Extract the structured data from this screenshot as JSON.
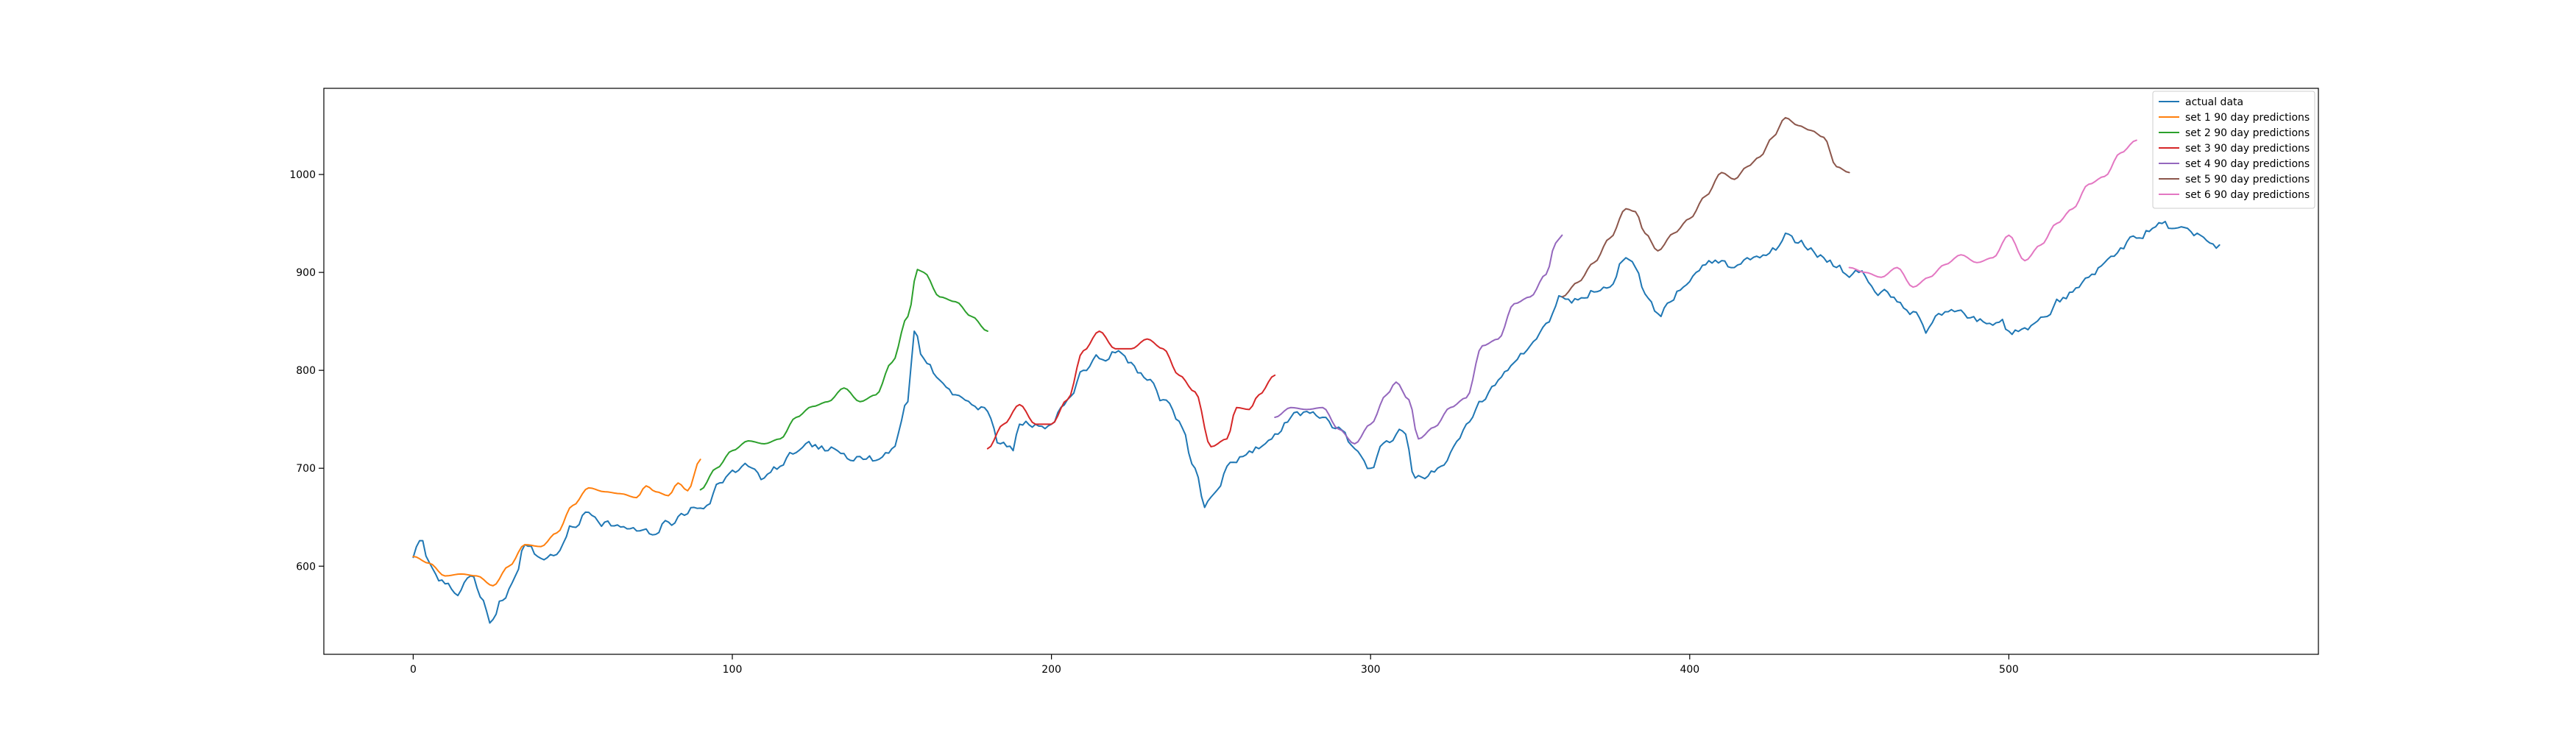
{
  "chart_data": {
    "type": "line",
    "title": "",
    "xlabel": "",
    "ylabel": "",
    "xlim": [
      -28,
      597
    ],
    "ylim": [
      510,
      1088
    ],
    "grid": false,
    "legend_position": "top-right",
    "x_ticks": [
      0,
      100,
      200,
      300,
      400,
      500
    ],
    "y_ticks": [
      600,
      700,
      800,
      900,
      1000
    ],
    "x_tick_labels": [
      "0",
      "100",
      "200",
      "300",
      "400",
      "500"
    ],
    "y_tick_labels": [
      "600",
      "700",
      "800",
      "900",
      "1000"
    ],
    "series": [
      {
        "name": "actual data",
        "color": "#1f77b4",
        "x_start": 0,
        "anchors": [
          [
            0,
            609
          ],
          [
            2,
            626
          ],
          [
            6,
            598
          ],
          [
            10,
            582
          ],
          [
            14,
            570
          ],
          [
            18,
            590
          ],
          [
            22,
            565
          ],
          [
            24,
            542
          ],
          [
            28,
            565
          ],
          [
            32,
            590
          ],
          [
            35,
            622
          ],
          [
            40,
            608
          ],
          [
            45,
            612
          ],
          [
            50,
            640
          ],
          [
            55,
            655
          ],
          [
            60,
            645
          ],
          [
            65,
            640
          ],
          [
            70,
            636
          ],
          [
            75,
            632
          ],
          [
            80,
            645
          ],
          [
            85,
            652
          ],
          [
            88,
            660
          ],
          [
            92,
            662
          ],
          [
            96,
            685
          ],
          [
            100,
            698
          ],
          [
            105,
            702
          ],
          [
            110,
            690
          ],
          [
            115,
            702
          ],
          [
            120,
            716
          ],
          [
            125,
            722
          ],
          [
            130,
            718
          ],
          [
            135,
            715
          ],
          [
            140,
            712
          ],
          [
            145,
            708
          ],
          [
            150,
            720
          ],
          [
            155,
            768
          ],
          [
            157,
            840
          ],
          [
            160,
            812
          ],
          [
            165,
            790
          ],
          [
            170,
            775
          ],
          [
            175,
            765
          ],
          [
            180,
            758
          ],
          [
            184,
            725
          ],
          [
            188,
            718
          ],
          [
            190,
            745
          ],
          [
            195,
            745
          ],
          [
            200,
            745
          ],
          [
            205,
            770
          ],
          [
            210,
            800
          ],
          [
            215,
            812
          ],
          [
            220,
            818
          ],
          [
            225,
            808
          ],
          [
            230,
            790
          ],
          [
            235,
            770
          ],
          [
            240,
            748
          ],
          [
            245,
            700
          ],
          [
            248,
            660
          ],
          [
            252,
            678
          ],
          [
            255,
            702
          ],
          [
            260,
            712
          ],
          [
            265,
            720
          ],
          [
            270,
            735
          ],
          [
            275,
            752
          ],
          [
            280,
            758
          ],
          [
            285,
            752
          ],
          [
            290,
            742
          ],
          [
            295,
            720
          ],
          [
            300,
            700
          ],
          [
            305,
            728
          ],
          [
            310,
            738
          ],
          [
            314,
            690
          ],
          [
            318,
            692
          ],
          [
            322,
            702
          ],
          [
            326,
            722
          ],
          [
            330,
            745
          ],
          [
            335,
            768
          ],
          [
            340,
            790
          ],
          [
            345,
            808
          ],
          [
            350,
            825
          ],
          [
            355,
            848
          ],
          [
            360,
            875
          ],
          [
            365,
            872
          ],
          [
            370,
            880
          ],
          [
            375,
            885
          ],
          [
            380,
            915
          ],
          [
            383,
            905
          ],
          [
            386,
            878
          ],
          [
            390,
            858
          ],
          [
            394,
            870
          ],
          [
            398,
            885
          ],
          [
            402,
            900
          ],
          [
            406,
            912
          ],
          [
            410,
            912
          ],
          [
            414,
            905
          ],
          [
            418,
            915
          ],
          [
            422,
            915
          ],
          [
            426,
            925
          ],
          [
            430,
            940
          ],
          [
            434,
            930
          ],
          [
            438,
            925
          ],
          [
            442,
            915
          ],
          [
            446,
            905
          ],
          [
            450,
            895
          ],
          [
            453,
            900
          ],
          [
            456,
            890
          ],
          [
            460,
            880
          ],
          [
            465,
            870
          ],
          [
            470,
            860
          ],
          [
            474,
            838
          ],
          [
            478,
            858
          ],
          [
            482,
            862
          ],
          [
            486,
            858
          ],
          [
            490,
            850
          ],
          [
            494,
            848
          ],
          [
            498,
            852
          ],
          [
            500,
            840
          ],
          [
            504,
            842
          ],
          [
            508,
            848
          ],
          [
            512,
            855
          ],
          [
            516,
            870
          ],
          [
            520,
            880
          ],
          [
            525,
            895
          ],
          [
            530,
            910
          ],
          [
            535,
            925
          ],
          [
            540,
            935
          ],
          [
            545,
            945
          ],
          [
            548,
            950
          ],
          [
            552,
            945
          ],
          [
            556,
            945
          ],
          [
            560,
            938
          ],
          [
            563,
            930
          ],
          [
            566,
            928
          ]
        ],
        "noise_seed": 7,
        "noise_amplitude": 7
      },
      {
        "name": "set 1 90 day predictions",
        "color": "#ff7f0e",
        "x_start": 0,
        "anchors": [
          [
            0,
            610
          ],
          [
            5,
            603
          ],
          [
            10,
            590
          ],
          [
            15,
            592
          ],
          [
            20,
            590
          ],
          [
            25,
            580
          ],
          [
            30,
            600
          ],
          [
            35,
            622
          ],
          [
            40,
            620
          ],
          [
            45,
            634
          ],
          [
            50,
            662
          ],
          [
            55,
            680
          ],
          [
            60,
            676
          ],
          [
            65,
            674
          ],
          [
            70,
            670
          ],
          [
            73,
            682
          ],
          [
            76,
            676
          ],
          [
            80,
            672
          ],
          [
            83,
            685
          ],
          [
            86,
            677
          ],
          [
            90,
            709
          ]
        ],
        "noise_seed": 0,
        "noise_amplitude": 0
      },
      {
        "name": "set 2 90 day predictions",
        "color": "#2ca02c",
        "x_start": 90,
        "anchors": [
          [
            90,
            678
          ],
          [
            95,
            700
          ],
          [
            100,
            718
          ],
          [
            105,
            728
          ],
          [
            110,
            725
          ],
          [
            115,
            730
          ],
          [
            120,
            752
          ],
          [
            125,
            763
          ],
          [
            130,
            768
          ],
          [
            135,
            782
          ],
          [
            140,
            768
          ],
          [
            145,
            775
          ],
          [
            150,
            808
          ],
          [
            155,
            855
          ],
          [
            158,
            903
          ],
          [
            160,
            900
          ],
          [
            165,
            875
          ],
          [
            170,
            870
          ],
          [
            175,
            855
          ],
          [
            180,
            840
          ]
        ],
        "noise_seed": 0,
        "noise_amplitude": 0
      },
      {
        "name": "set 3 90 day predictions",
        "color": "#d62728",
        "x_start": 180,
        "anchors": [
          [
            180,
            720
          ],
          [
            185,
            745
          ],
          [
            190,
            765
          ],
          [
            195,
            745
          ],
          [
            200,
            745
          ],
          [
            205,
            770
          ],
          [
            210,
            820
          ],
          [
            215,
            840
          ],
          [
            220,
            822
          ],
          [
            225,
            822
          ],
          [
            230,
            832
          ],
          [
            235,
            822
          ],
          [
            240,
            795
          ],
          [
            245,
            778
          ],
          [
            250,
            722
          ],
          [
            255,
            730
          ],
          [
            258,
            762
          ],
          [
            262,
            760
          ],
          [
            265,
            775
          ],
          [
            270,
            795
          ]
        ],
        "noise_seed": 0,
        "noise_amplitude": 0
      },
      {
        "name": "set 4 90 day predictions",
        "color": "#9467bd",
        "x_start": 270,
        "anchors": [
          [
            270,
            752
          ],
          [
            275,
            762
          ],
          [
            280,
            760
          ],
          [
            285,
            762
          ],
          [
            290,
            740
          ],
          [
            295,
            725
          ],
          [
            300,
            745
          ],
          [
            305,
            775
          ],
          [
            308,
            788
          ],
          [
            312,
            770
          ],
          [
            315,
            730
          ],
          [
            320,
            742
          ],
          [
            325,
            762
          ],
          [
            330,
            772
          ],
          [
            335,
            825
          ],
          [
            340,
            832
          ],
          [
            345,
            868
          ],
          [
            350,
            875
          ],
          [
            355,
            898
          ],
          [
            358,
            930
          ],
          [
            360,
            938
          ]
        ],
        "noise_seed": 0,
        "noise_amplitude": 0
      },
      {
        "name": "set 5 90 day predictions",
        "color": "#8c564b",
        "x_start": 360,
        "anchors": [
          [
            360,
            875
          ],
          [
            365,
            890
          ],
          [
            370,
            910
          ],
          [
            375,
            935
          ],
          [
            380,
            965
          ],
          [
            383,
            962
          ],
          [
            386,
            940
          ],
          [
            390,
            922
          ],
          [
            395,
            940
          ],
          [
            400,
            955
          ],
          [
            405,
            978
          ],
          [
            410,
            1002
          ],
          [
            414,
            995
          ],
          [
            418,
            1008
          ],
          [
            422,
            1018
          ],
          [
            426,
            1038
          ],
          [
            430,
            1058
          ],
          [
            434,
            1050
          ],
          [
            438,
            1045
          ],
          [
            442,
            1038
          ],
          [
            446,
            1008
          ],
          [
            450,
            1002
          ]
        ],
        "noise_seed": 0,
        "noise_amplitude": 0
      },
      {
        "name": "set 6 90 day predictions",
        "color": "#e377c2",
        "x_start": 450,
        "anchors": [
          [
            450,
            905
          ],
          [
            455,
            900
          ],
          [
            460,
            895
          ],
          [
            465,
            905
          ],
          [
            470,
            885
          ],
          [
            475,
            895
          ],
          [
            480,
            908
          ],
          [
            485,
            918
          ],
          [
            490,
            910
          ],
          [
            495,
            915
          ],
          [
            500,
            938
          ],
          [
            505,
            912
          ],
          [
            510,
            928
          ],
          [
            515,
            950
          ],
          [
            520,
            965
          ],
          [
            525,
            990
          ],
          [
            530,
            998
          ],
          [
            535,
            1022
          ],
          [
            540,
            1035
          ]
        ],
        "noise_seed": 0,
        "noise_amplitude": 0
      }
    ]
  }
}
